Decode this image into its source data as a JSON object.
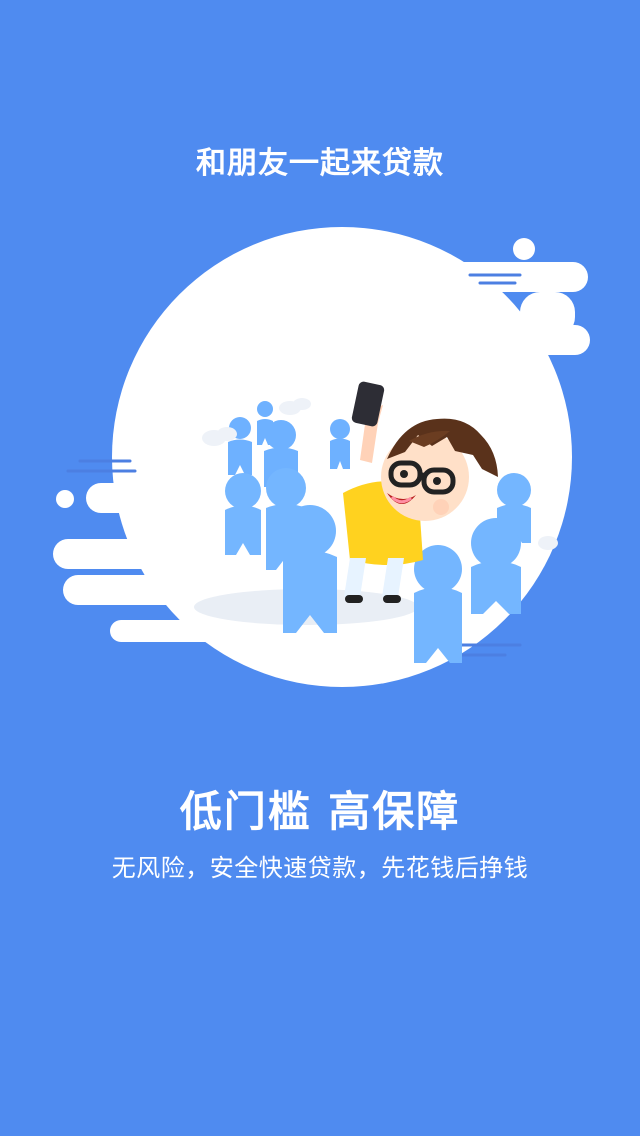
{
  "intro": {
    "top_title": "和朋友一起来贷款",
    "headline": "低门槛  高保障",
    "subline": "无风险，安全快速贷款，先花钱后挣钱"
  },
  "colors": {
    "background": "#4f8bf0",
    "text": "#ffffff",
    "bubble": "#ffffff",
    "crowd": "#74b6ff",
    "shirt": "#ffd21f"
  },
  "illustration": {
    "icon": "crowd-selfie-illustration"
  }
}
